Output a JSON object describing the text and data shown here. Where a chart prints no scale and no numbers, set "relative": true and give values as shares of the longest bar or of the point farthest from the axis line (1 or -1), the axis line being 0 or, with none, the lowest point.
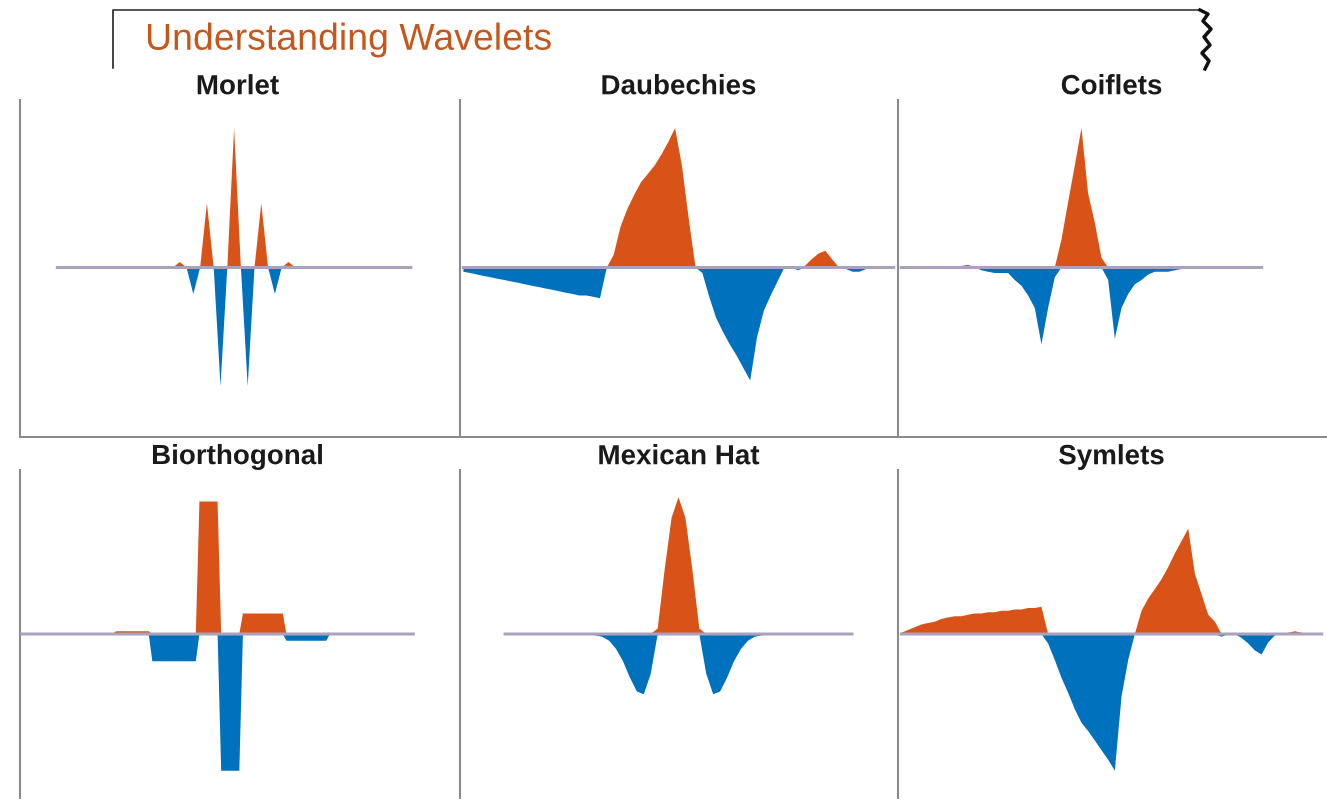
{
  "chart_data": [
    {
      "type": "area",
      "title": "Morlet",
      "relative": true,
      "annotations": [
        "Understanding Wavelets"
      ],
      "categories": [
        null,
        null,
        null,
        null,
        null,
        null,
        null,
        null,
        null,
        null,
        null,
        null,
        null,
        null,
        null,
        null,
        null,
        null,
        null,
        null,
        null,
        null,
        null,
        null,
        null,
        null,
        null,
        null,
        null,
        null,
        null,
        null,
        null,
        null,
        null,
        null,
        null,
        null,
        null,
        null,
        null,
        null,
        null,
        null,
        null,
        null,
        null,
        null,
        null,
        null,
        null,
        null,
        null,
        null,
        null,
        null,
        null,
        null,
        null,
        null,
        null,
        null,
        null,
        null
      ],
      "series": [
        {
          "color": "#d95319",
          "values": [
            null,
            null,
            null,
            null,
            null,
            0,
            0,
            0,
            0,
            0,
            0,
            0,
            0,
            0,
            0,
            0,
            0,
            0,
            0,
            0,
            0,
            0,
            0,
            0.04,
            0,
            0,
            0,
            0.46,
            0,
            0,
            0,
            1,
            0,
            0,
            0,
            0.46,
            0,
            0,
            0,
            0.04,
            0,
            0,
            0,
            0,
            0,
            0,
            0,
            0,
            0,
            0,
            0,
            0,
            0,
            0,
            0,
            0,
            0,
            0,
            null,
            null,
            null,
            null,
            null,
            null
          ]
        },
        {
          "color": "#0072bd",
          "values": [
            null,
            null,
            null,
            null,
            null,
            0,
            0,
            0,
            0,
            0,
            0,
            0,
            0,
            0,
            0,
            0,
            0,
            0,
            0,
            0,
            0,
            0,
            0,
            0,
            0,
            -0.19,
            0,
            0,
            0,
            -0.85,
            0,
            0,
            0,
            -0.85,
            0,
            0,
            0,
            -0.19,
            0,
            0,
            0,
            0,
            0,
            0,
            0,
            0,
            0,
            0,
            0,
            0,
            0,
            0,
            0,
            0,
            0,
            0,
            0,
            0,
            null,
            null,
            null,
            null,
            null,
            null
          ]
        }
      ]
    },
    {
      "type": "area",
      "title": "Daubechies",
      "relative": true,
      "categories": [
        null,
        null,
        null,
        null,
        null,
        null,
        null,
        null,
        null,
        null,
        null,
        null,
        null,
        null,
        null,
        null,
        null,
        null,
        null,
        null,
        null,
        null,
        null,
        null,
        null,
        null,
        null,
        null,
        null,
        null,
        null,
        null,
        null,
        null,
        null,
        null,
        null,
        null,
        null,
        null,
        null,
        null,
        null,
        null,
        null,
        null,
        null,
        null,
        null,
        null,
        null,
        null,
        null,
        null,
        null,
        null,
        null,
        null,
        null,
        null,
        null,
        null,
        null,
        null
      ],
      "series": [
        {
          "color": "#d95319",
          "values": [
            0,
            0,
            0,
            0,
            0,
            0,
            0,
            0,
            0,
            0,
            0,
            0,
            0,
            0,
            0,
            0,
            0,
            0,
            0,
            0,
            0,
            0,
            0.09,
            0.29,
            0.42,
            0.52,
            0.61,
            0.67,
            0.73,
            0.81,
            0.9,
            1,
            0.73,
            0.35,
            0,
            0,
            0,
            0,
            0,
            0,
            0,
            0,
            0,
            0,
            0,
            0,
            0,
            0,
            0.01,
            0,
            0.01,
            0.06,
            0.1,
            0.12,
            0.06,
            0,
            0,
            0,
            0,
            0,
            0,
            0,
            0,
            0
          ]
        },
        {
          "color": "#0072bd",
          "values": [
            -0.03,
            -0.04,
            -0.05,
            -0.06,
            -0.07,
            -0.08,
            -0.09,
            -0.1,
            -0.11,
            -0.12,
            -0.13,
            -0.14,
            -0.15,
            -0.16,
            -0.17,
            -0.18,
            -0.19,
            -0.2,
            -0.2,
            -0.21,
            -0.22,
            0,
            0,
            0,
            0,
            0,
            0,
            0,
            0,
            0,
            0,
            0,
            0,
            0,
            0,
            -0.04,
            -0.21,
            -0.36,
            -0.46,
            -0.55,
            -0.63,
            -0.72,
            -0.81,
            -0.5,
            -0.31,
            -0.2,
            -0.1,
            0,
            0,
            -0.02,
            0,
            0,
            0,
            0,
            0,
            0,
            -0.01,
            -0.03,
            -0.03,
            -0.01,
            0,
            0,
            0,
            0
          ]
        }
      ]
    },
    {
      "type": "area",
      "title": "Coiflets",
      "relative": true,
      "categories": [
        null,
        null,
        null,
        null,
        null,
        null,
        null,
        null,
        null,
        null,
        null,
        null,
        null,
        null,
        null,
        null,
        null,
        null,
        null,
        null,
        null,
        null,
        null,
        null,
        null,
        null,
        null,
        null,
        null,
        null,
        null,
        null,
        null,
        null,
        null,
        null,
        null,
        null,
        null,
        null,
        null,
        null,
        null,
        null,
        null,
        null,
        null,
        null,
        null,
        null,
        null,
        null,
        null,
        null,
        null,
        null,
        null,
        null,
        null,
        null,
        null,
        null,
        null,
        null
      ],
      "series": [
        {
          "color": "#d95319",
          "values": [
            0,
            0,
            0,
            0,
            0,
            0,
            0,
            0,
            0,
            0.01,
            0.02,
            0,
            0,
            0,
            0,
            0,
            0,
            0,
            0,
            0,
            0,
            0,
            0,
            0,
            0.2,
            0.47,
            0.73,
            1,
            0.53,
            0.32,
            0.07,
            0,
            0,
            0,
            0,
            0,
            0,
            0,
            0,
            0,
            0,
            0,
            0,
            0.01,
            0,
            0,
            0,
            0,
            0,
            0,
            0,
            0,
            0,
            0,
            0,
            null,
            null,
            null,
            null,
            null,
            null,
            null,
            null,
            null
          ]
        },
        {
          "color": "#0072bd",
          "values": [
            0,
            0,
            0,
            0,
            0,
            0,
            0,
            0,
            0,
            0,
            0,
            0,
            -0.02,
            -0.03,
            -0.04,
            -0.04,
            -0.04,
            -0.09,
            -0.13,
            -0.2,
            -0.29,
            -0.55,
            -0.29,
            -0.07,
            0,
            0,
            0,
            0,
            0,
            0,
            0,
            -0.09,
            -0.51,
            -0.29,
            -0.19,
            -0.12,
            -0.09,
            -0.05,
            -0.03,
            -0.03,
            -0.03,
            -0.02,
            -0.01,
            0,
            0,
            0,
            0,
            0,
            0,
            0,
            0,
            0,
            0,
            0,
            0,
            null,
            null,
            null,
            null,
            null,
            null,
            null,
            null,
            null
          ]
        }
      ]
    },
    {
      "type": "area",
      "title": "Biorthogonal",
      "relative": true,
      "categories": [
        null,
        null,
        null,
        null,
        null,
        null,
        null,
        null,
        null,
        null,
        null,
        null,
        null,
        null,
        null,
        null,
        null,
        null,
        null,
        null,
        null,
        null,
        null,
        null,
        null,
        null,
        null,
        null,
        null,
        null,
        null,
        null,
        null,
        null,
        null,
        null,
        null,
        null,
        null,
        null,
        null,
        null,
        null,
        null,
        null,
        null,
        null,
        null,
        null,
        null,
        null,
        null,
        null,
        null,
        null,
        null,
        null,
        null,
        null,
        null,
        null,
        null,
        null,
        null,
        null,
        null,
        null,
        null,
        null,
        null,
        null,
        null,
        null,
        null,
        null,
        null,
        null,
        null,
        null,
        null,
        null,
        null,
        null,
        null,
        null,
        null,
        null,
        null,
        null,
        null,
        null,
        null,
        null,
        null,
        null,
        null,
        null,
        null,
        null,
        null,
        null,
        null,
        null,
        null,
        null,
        null,
        null,
        null,
        null,
        null,
        null,
        null,
        null,
        null,
        null,
        null,
        null,
        null,
        null,
        null
      ],
      "series": [
        {
          "color": "#d95319",
          "values": [
            0,
            0,
            0,
            0,
            0,
            0,
            0,
            0,
            0,
            0,
            0,
            0,
            0,
            0,
            0,
            0,
            0,
            0,
            0,
            0,
            0,
            0,
            0,
            0,
            0,
            0,
            0.02,
            0.02,
            0.02,
            0.02,
            0.02,
            0.02,
            0.02,
            0.02,
            0.02,
            0.02,
            0,
            0,
            0,
            0,
            0,
            0,
            0,
            0,
            0,
            0,
            0,
            0,
            0,
            0.97,
            0.97,
            0.97,
            0.97,
            0.97,
            0.97,
            0,
            0,
            0,
            0,
            0,
            0,
            0.15,
            0.15,
            0.15,
            0.15,
            0.15,
            0.15,
            0.15,
            0.15,
            0.15,
            0.15,
            0.15,
            0.15,
            0,
            0,
            0,
            0,
            0,
            0,
            0,
            0,
            0,
            0,
            0,
            0,
            0,
            0,
            0,
            0,
            0,
            0,
            0,
            0,
            0,
            0,
            0,
            0,
            0,
            0,
            0,
            0,
            0,
            0,
            0,
            0,
            0,
            0,
            0,
            0,
            null,
            null,
            null,
            null,
            null,
            null,
            null,
            null,
            null,
            null,
            null
          ]
        },
        {
          "color": "#0072bd",
          "values": [
            0,
            0,
            0,
            0,
            0,
            0,
            0,
            0,
            0,
            0,
            0,
            0,
            0,
            0,
            0,
            0,
            0,
            0,
            0,
            0,
            0,
            0,
            0,
            0,
            0,
            0,
            0,
            0,
            0,
            0,
            0,
            0,
            0,
            0,
            0,
            0,
            -0.2,
            -0.2,
            -0.2,
            -0.2,
            -0.2,
            -0.2,
            -0.2,
            -0.2,
            -0.2,
            -0.2,
            -0.2,
            -0.2,
            -0.2,
            0,
            0,
            0,
            0,
            0,
            0,
            -1,
            -1,
            -1,
            -1,
            -1,
            -1,
            0,
            0,
            0,
            0,
            0,
            0,
            0,
            0,
            0,
            0,
            0,
            0,
            -0.05,
            -0.05,
            -0.05,
            -0.05,
            -0.05,
            -0.05,
            -0.05,
            -0.05,
            -0.05,
            -0.05,
            -0.05,
            -0.05,
            0,
            0,
            0,
            0,
            0,
            0,
            0,
            0,
            0,
            0,
            0,
            0,
            0,
            0,
            0,
            0,
            0,
            0,
            0,
            0,
            0,
            0,
            0,
            0,
            null,
            null,
            null,
            null,
            null,
            null,
            null,
            null,
            null,
            null,
            null
          ]
        }
      ]
    },
    {
      "type": "area",
      "title": "Mexican Hat",
      "relative": true,
      "categories": [
        null,
        null,
        null,
        null,
        null,
        null,
        null,
        null,
        null,
        null,
        null,
        null,
        null,
        null,
        null,
        null,
        null,
        null,
        null,
        null,
        null,
        null,
        null,
        null,
        null,
        null,
        null,
        null,
        null,
        null,
        null,
        null,
        null,
        null,
        null,
        null,
        null,
        null,
        null,
        null,
        null,
        null,
        null,
        null,
        null,
        null,
        null,
        null,
        null,
        null,
        null,
        null,
        null,
        null,
        null,
        null,
        null,
        null,
        null,
        null,
        null,
        null,
        null
      ],
      "series": [
        {
          "color": "#d95319",
          "values": [
            null,
            null,
            null,
            null,
            null,
            null,
            0,
            0,
            0,
            0,
            0,
            0,
            0,
            0,
            0,
            0,
            0,
            0,
            0,
            0,
            0,
            0,
            0,
            0,
            0,
            0,
            0,
            0,
            0.04,
            0.47,
            0.85,
            1,
            0.85,
            0.47,
            0.04,
            0,
            0,
            0,
            0,
            0,
            0,
            0,
            0,
            0,
            0,
            0,
            0,
            0,
            0,
            0,
            0,
            0,
            0,
            0,
            0,
            0,
            0,
            null,
            null,
            null,
            null,
            null,
            null
          ]
        },
        {
          "color": "#0072bd",
          "values": [
            null,
            null,
            null,
            null,
            null,
            null,
            0,
            0,
            0,
            0,
            0,
            0,
            0,
            0,
            0,
            0,
            0,
            0,
            0,
            -0.01,
            -0.02,
            -0.05,
            -0.11,
            -0.2,
            -0.32,
            -0.42,
            -0.44,
            -0.29,
            0,
            0,
            0,
            0,
            0,
            0,
            0,
            -0.29,
            -0.44,
            -0.42,
            -0.32,
            -0.2,
            -0.11,
            -0.05,
            -0.02,
            -0.01,
            0,
            0,
            0,
            0,
            0,
            0,
            0,
            0,
            0,
            0,
            0,
            0,
            0,
            null,
            null,
            null,
            null,
            null,
            null
          ]
        }
      ]
    },
    {
      "type": "area",
      "title": "Symlets",
      "relative": true,
      "categories": [
        null,
        null,
        null,
        null,
        null,
        null,
        null,
        null,
        null,
        null,
        null,
        null,
        null,
        null,
        null,
        null,
        null,
        null,
        null,
        null,
        null,
        null,
        null,
        null,
        null,
        null,
        null,
        null,
        null,
        null,
        null,
        null,
        null,
        null,
        null,
        null,
        null,
        null,
        null,
        null,
        null,
        null,
        null,
        null,
        null,
        null,
        null,
        null,
        null,
        null,
        null,
        null,
        null,
        null,
        null,
        null,
        null,
        null,
        null,
        null,
        null,
        null,
        null,
        null
      ],
      "series": [
        {
          "color": "#d95319",
          "values": [
            0.01,
            0.03,
            0.05,
            0.07,
            0.08,
            0.09,
            0.11,
            0.12,
            0.13,
            0.13,
            0.14,
            0.15,
            0.15,
            0.16,
            0.16,
            0.17,
            0.17,
            0.18,
            0.18,
            0.19,
            0.19,
            0.2,
            0,
            0,
            0,
            0,
            0,
            0,
            0,
            0,
            0,
            0,
            0,
            0,
            0,
            0,
            0.17,
            0.26,
            0.33,
            0.4,
            0.49,
            0.59,
            0.68,
            0.77,
            0.44,
            0.29,
            0.14,
            0.09,
            0,
            0,
            0,
            0,
            0,
            0,
            0,
            0,
            0,
            0,
            0.01,
            0.02,
            0.01,
            0,
            0,
            0
          ]
        },
        {
          "color": "#0072bd",
          "values": [
            0,
            0,
            0,
            0,
            0,
            0,
            0,
            0,
            0,
            0,
            0,
            0,
            0,
            0,
            0,
            0,
            0,
            0,
            0,
            0,
            0,
            0,
            -0.07,
            -0.19,
            -0.32,
            -0.43,
            -0.55,
            -0.65,
            -0.71,
            -0.78,
            -0.85,
            -0.92,
            -1,
            -0.46,
            -0.19,
            0,
            0,
            0,
            0,
            0,
            0,
            0,
            0,
            0,
            0,
            0,
            0,
            0,
            -0.02,
            0,
            0,
            -0.03,
            -0.07,
            -0.12,
            -0.15,
            -0.06,
            -0.01,
            0,
            0,
            0,
            0,
            0,
            0,
            0
          ]
        }
      ]
    }
  ]
}
